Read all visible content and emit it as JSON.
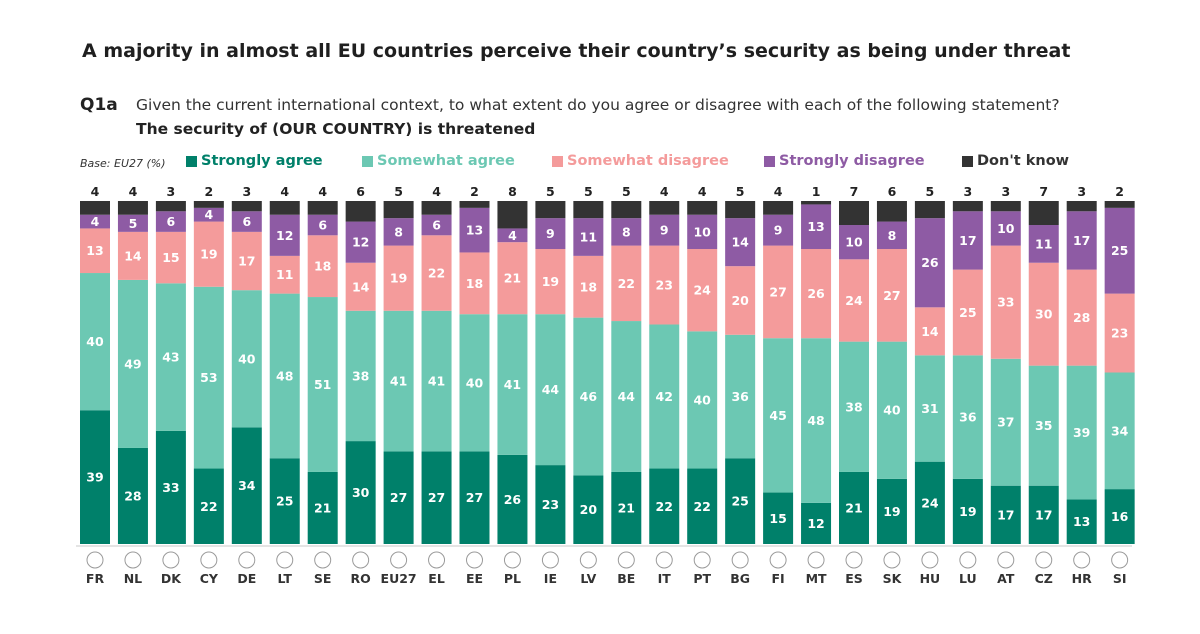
{
  "title": "A majority in almost all EU countries perceive their country’s security as being under threat",
  "question_code": "Q1a",
  "question_text": "Given the current international context, to what extent do you agree or disagree with each of the following statement?",
  "statement": "The security of (OUR COUNTRY) is threatened",
  "base_note": "Base: EU27 (%)",
  "colors": {
    "strongly_agree": "#00806a",
    "somewhat_agree": "#6cc8b3",
    "somewhat_disagree": "#f49b9b",
    "strongly_disagree": "#8e5ba4",
    "dont_know": "#333333"
  },
  "chart_data": {
    "type": "bar",
    "stacked": true,
    "title": "A majority in almost all EU countries perceive their country’s security as being under threat",
    "categories": [
      "FR",
      "NL",
      "DK",
      "CY",
      "DE",
      "LT",
      "SE",
      "RO",
      "EU27",
      "EL",
      "EE",
      "PL",
      "IE",
      "LV",
      "BE",
      "IT",
      "PT",
      "BG",
      "FI",
      "MT",
      "ES",
      "SK",
      "HU",
      "LU",
      "AT",
      "CZ",
      "HR",
      "SI"
    ],
    "ylim": [
      0,
      100
    ],
    "legend_position": "top",
    "series": [
      {
        "name": "Strongly agree",
        "color": "#00806a",
        "label_color": "#ffffff",
        "values": [
          39,
          28,
          33,
          22,
          34,
          25,
          21,
          30,
          27,
          27,
          27,
          26,
          23,
          20,
          21,
          22,
          22,
          25,
          15,
          12,
          21,
          19,
          24,
          19,
          17,
          17,
          13,
          16
        ]
      },
      {
        "name": "Somewhat agree",
        "color": "#6cc8b3",
        "label_color": "#ffffff",
        "values": [
          40,
          49,
          43,
          53,
          40,
          48,
          51,
          38,
          41,
          41,
          40,
          41,
          44,
          46,
          44,
          42,
          40,
          36,
          45,
          48,
          38,
          40,
          31,
          36,
          37,
          35,
          39,
          34
        ]
      },
      {
        "name": "Somewhat disagree",
        "color": "#f49b9b",
        "label_color": "#ffffff",
        "values": [
          13,
          14,
          15,
          19,
          17,
          11,
          18,
          14,
          19,
          22,
          18,
          21,
          19,
          18,
          22,
          23,
          24,
          20,
          27,
          26,
          24,
          27,
          14,
          25,
          33,
          30,
          28,
          23
        ]
      },
      {
        "name": "Strongly disagree",
        "color": "#8e5ba4",
        "label_color": "#ffffff",
        "values": [
          4,
          5,
          6,
          4,
          6,
          12,
          6,
          12,
          8,
          6,
          13,
          4,
          9,
          11,
          8,
          9,
          10,
          14,
          9,
          13,
          10,
          8,
          26,
          17,
          10,
          11,
          17,
          25
        ]
      },
      {
        "name": "Don't know",
        "color": "#333333",
        "label_color": "#222222",
        "values": [
          4,
          4,
          3,
          2,
          3,
          4,
          4,
          6,
          5,
          4,
          2,
          8,
          5,
          5,
          5,
          4,
          4,
          5,
          4,
          1,
          7,
          6,
          5,
          3,
          3,
          7,
          3,
          2
        ]
      }
    ]
  }
}
